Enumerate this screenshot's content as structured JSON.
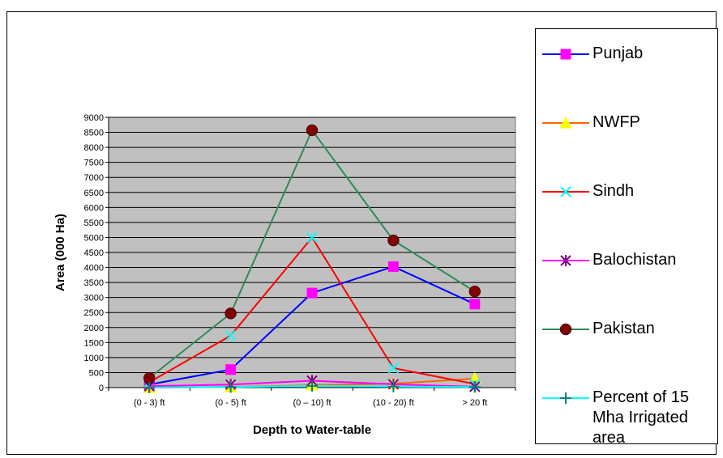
{
  "chart_data": {
    "type": "line",
    "xlabel": "Depth to Water-table",
    "ylabel": "Area (000 Ha)",
    "categories": [
      "(0 - 3) ft",
      "(0 - 5) ft",
      "(0 – 10) ft",
      "(10 - 20) ft",
      "> 20 ft"
    ],
    "ylim": [
      0,
      9000
    ],
    "yticks": [
      0,
      500,
      1000,
      1500,
      2000,
      2500,
      3000,
      3500,
      4000,
      4500,
      5000,
      5500,
      6000,
      6500,
      7000,
      7500,
      8000,
      8500,
      9000
    ],
    "grid": true,
    "plot_background": "#c0c0c0",
    "legend_position": "right",
    "series": [
      {
        "name": "Punjab",
        "color": "#0000ff",
        "marker": "square",
        "marker_color": "#ff00ff",
        "values": [
          100,
          600,
          3150,
          4030,
          2780
        ]
      },
      {
        "name": "NWFP",
        "color": "#ff6600",
        "marker": "triangle",
        "marker_color": "#ffff00",
        "values": [
          0,
          20,
          80,
          130,
          300
        ]
      },
      {
        "name": "Sindh",
        "color": "#ff0000",
        "marker": "x",
        "marker_color": "#00ffff",
        "values": [
          180,
          1730,
          5000,
          650,
          120
        ]
      },
      {
        "name": "Balochistan",
        "color": "#ff00ff",
        "marker": "star",
        "marker_color": "#800080",
        "values": [
          50,
          100,
          230,
          110,
          30
        ]
      },
      {
        "name": "Pakistan",
        "color": "#2e8b57",
        "marker": "circle",
        "marker_color": "#800000",
        "values": [
          320,
          2470,
          8570,
          4900,
          3200
        ]
      },
      {
        "name": "Percent of 15 Mha Irrigated area",
        "color": "#00ffff",
        "marker": "plus",
        "marker_color": "#008080",
        "values": [
          2,
          16,
          57,
          33,
          21
        ]
      }
    ]
  }
}
